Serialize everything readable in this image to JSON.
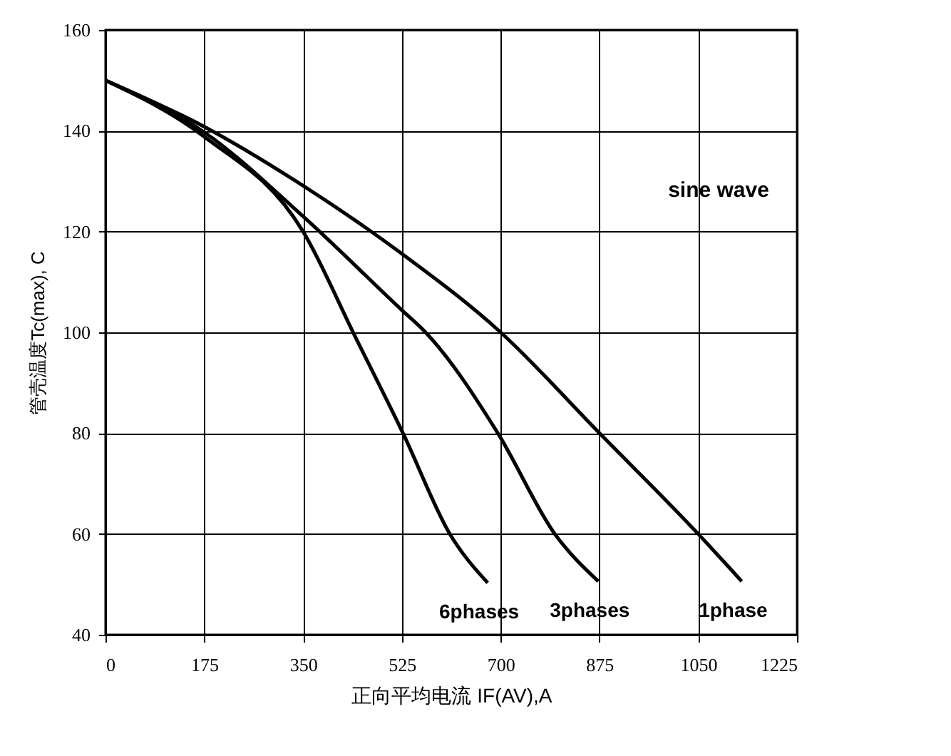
{
  "chart_data": {
    "type": "line",
    "xlabel": "正向平均电流 IF(AV),A",
    "ylabel": "管壳温度Tc(max), C",
    "xlim": [
      0,
      1225
    ],
    "ylim": [
      40,
      160
    ],
    "xticks": [
      0,
      175,
      350,
      525,
      700,
      875,
      1050,
      1225
    ],
    "yticks": [
      40,
      60,
      80,
      100,
      120,
      140,
      160
    ],
    "grid": true,
    "legend": false,
    "marker": "none",
    "line_style": "solid",
    "annotations": [
      "sine wave"
    ],
    "series": [
      {
        "name": "1phase",
        "color": "#000000",
        "x": [
          0,
          175,
          350,
          525,
          700,
          875,
          1050,
          1127
        ],
        "values": [
          150,
          140.8,
          129.1,
          115.6,
          100,
          80,
          60,
          50.6
        ]
      },
      {
        "name": "3phases",
        "color": "#000000",
        "x": [
          0,
          175,
          350,
          525,
          567,
          695,
          796,
          873
        ],
        "values": [
          150,
          139.7,
          123,
          104.4,
          100,
          80,
          60,
          50.6
        ]
      },
      {
        "name": "6phases",
        "color": "#000000",
        "x": [
          0,
          175,
          350,
          443,
          527,
          610,
          677
        ],
        "values": [
          150,
          138.8,
          120,
          99,
          80,
          60,
          50.3
        ]
      }
    ]
  }
}
